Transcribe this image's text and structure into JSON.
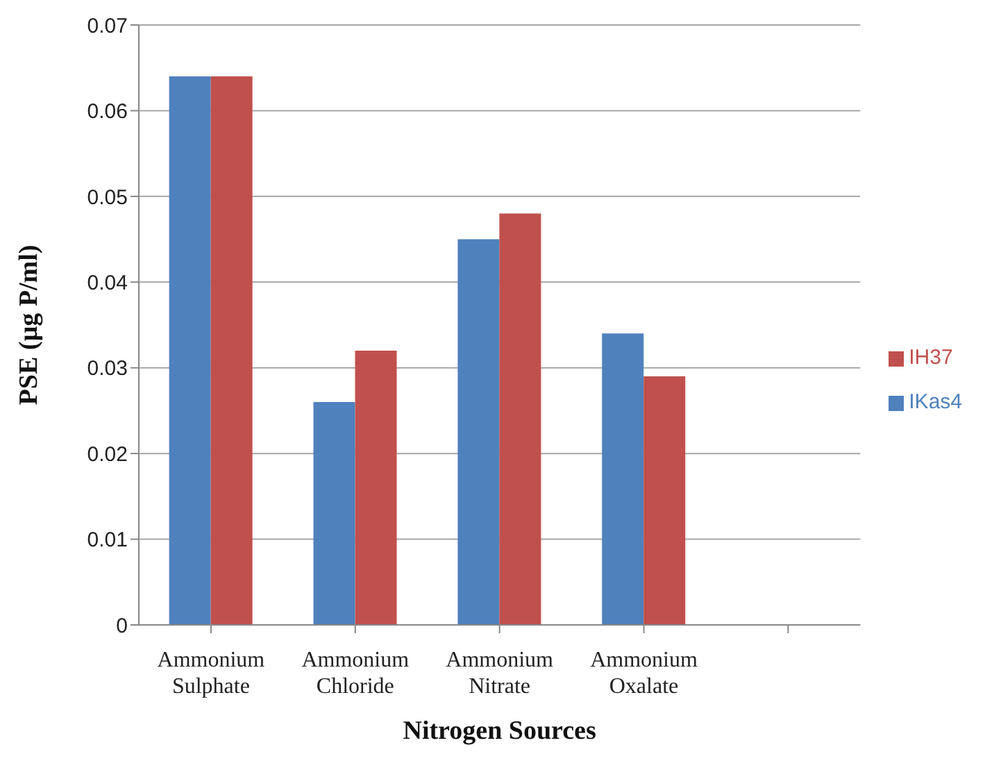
{
  "chart_data": {
    "type": "bar",
    "xlabel": "Nitrogen Sources",
    "ylabel": "PSE (µg P/ml)",
    "categories": [
      "Ammonium Sulphate",
      "Ammonium Chloride",
      "Ammonium Nitrate",
      "Ammonium Oxalate",
      null
    ],
    "series": [
      {
        "name": "IKas4",
        "color": "#4f81bd",
        "values": [
          0.064,
          0.026,
          0.045,
          0.034,
          null
        ]
      },
      {
        "name": "IH37",
        "color": "#c0504d",
        "values": [
          0.064,
          0.032,
          0.048,
          0.029,
          null
        ]
      }
    ],
    "ylim": [
      0,
      0.07
    ],
    "yticks": [
      0,
      0.01,
      0.02,
      0.03,
      0.04,
      0.05,
      0.06,
      0.07
    ],
    "grid": "y",
    "legend": "right"
  }
}
